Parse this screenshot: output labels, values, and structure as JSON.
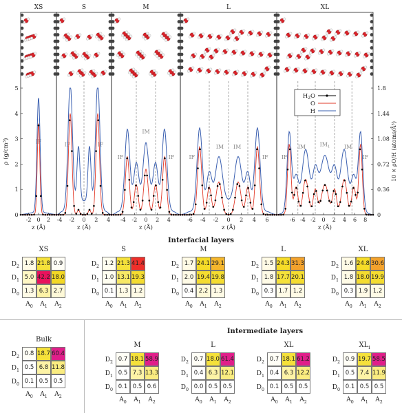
{
  "chart_data": {
    "type": "line",
    "panels": [
      {
        "title": "XS",
        "xticks": [
          "-2",
          "0",
          "2"
        ],
        "xlim": [
          -3.6,
          3.6
        ]
      },
      {
        "title": "S",
        "xticks": [
          "-4",
          "-2",
          "0",
          "2",
          "4"
        ],
        "xlim": [
          -4.5,
          4.5
        ]
      },
      {
        "title": "M",
        "xticks": [
          "-4",
          "-2",
          "0",
          "2",
          "4"
        ],
        "xlim": [
          -6,
          6
        ]
      },
      {
        "title": "L",
        "xticks": [
          "-6",
          "-4",
          "-2",
          "0",
          "2",
          "4",
          "6"
        ],
        "xlim": [
          -7.5,
          7.5
        ]
      },
      {
        "title": "XL",
        "xticks": [
          "-6",
          "-4",
          "-2",
          "0",
          "2",
          "4",
          "6",
          "8"
        ],
        "xlim": [
          -9,
          9.5
        ]
      }
    ],
    "xlabel": "z (Å)",
    "ylabel": "ρ (g/cm³)",
    "ylabel_right": "10 × ρO/H (atoms/Å³)",
    "ylim": [
      0,
      5
    ],
    "yticks": [
      "0",
      "1",
      "2",
      "3",
      "4",
      "5"
    ],
    "yticks_right": [
      "0",
      "0.36",
      "0.72",
      "1.08",
      "1.44",
      "1.8"
    ],
    "legend_position": "top-right",
    "series": [
      {
        "name": "H2O",
        "color": "#000000"
      },
      {
        "name": "O",
        "color": "#e23b2a"
      },
      {
        "name": "H",
        "color": "#3a5fb0"
      }
    ],
    "region_labels": {
      "XS": [
        "IF"
      ],
      "S": [
        "IF",
        "IF"
      ],
      "M": [
        "IF",
        "IM",
        "IF"
      ],
      "L": [
        "IF",
        "IM",
        "IM",
        "IF"
      ],
      "XL": [
        "IF",
        "IM",
        "IM1",
        "IM",
        "IF"
      ]
    }
  },
  "interfacial_title": "Interfacial layers",
  "intermediate_title": "Intermediate layers",
  "row_labels": [
    "D2",
    "D1",
    "D0"
  ],
  "col_labels": [
    "A0",
    "A1",
    "A2"
  ],
  "interfacial": [
    {
      "title": "XS",
      "values": [
        [
          "1.8",
          "21.8",
          "0.9"
        ],
        [
          "5.0",
          "42.2",
          "18.0"
        ],
        [
          "1.3",
          "6.3",
          "2.7"
        ]
      ],
      "colors": [
        [
          "#fffbe6",
          "#f5e13a",
          "#fffef6"
        ],
        [
          "#fff7c4",
          "#e8125c",
          "#f3d825"
        ],
        [
          "#fffbe6",
          "#fdf3a6",
          "#fef9d8"
        ]
      ]
    },
    {
      "title": "S",
      "values": [
        [
          "1.2",
          "21.3",
          "41.4"
        ],
        [
          "1.0",
          "13.1",
          "19.3"
        ],
        [
          "0.1",
          "1.3",
          "1.2"
        ]
      ],
      "colors": [
        [
          "#fffef0",
          "#f5e13a",
          "#ef2f2a"
        ],
        [
          "#fffef0",
          "#f7e865",
          "#f4dc30"
        ],
        [
          "#ffffff",
          "#fffbe6",
          "#fffbe6"
        ]
      ]
    },
    {
      "title": "M",
      "values": [
        [
          "1.7",
          "24.1",
          "29.1"
        ],
        [
          "2.0",
          "19.4",
          "19.8"
        ],
        [
          "0.4",
          "2.2",
          "1.3"
        ]
      ],
      "colors": [
        [
          "#fffbe6",
          "#f6dc28",
          "#f5b62c"
        ],
        [
          "#fffbe6",
          "#f4dc30",
          "#f4dc30"
        ],
        [
          "#ffffff",
          "#fef9d8",
          "#fffbe6"
        ]
      ]
    },
    {
      "title": "L",
      "values": [
        [
          "1.5",
          "24.3",
          "31.3"
        ],
        [
          "1.8",
          "17.7",
          "20.1"
        ],
        [
          "0.3",
          "1.7",
          "1.2"
        ]
      ],
      "colors": [
        [
          "#fffbe6",
          "#f6dc28",
          "#f3a22c"
        ],
        [
          "#fffbe6",
          "#f5e13a",
          "#f4dc30"
        ],
        [
          "#ffffff",
          "#fffbe6",
          "#fffbe6"
        ]
      ]
    },
    {
      "title": "XL",
      "values": [
        [
          "1.6",
          "24.8",
          "30.6"
        ],
        [
          "1.8",
          "18.0",
          "19.9"
        ],
        [
          "0.3",
          "1.9",
          "1.2"
        ]
      ],
      "colors": [
        [
          "#fffbe6",
          "#f6dc28",
          "#f3a22c"
        ],
        [
          "#fffbe6",
          "#f4dc30",
          "#f4dc30"
        ],
        [
          "#ffffff",
          "#fffbe6",
          "#fffbe6"
        ]
      ]
    }
  ],
  "bulk": {
    "title": "Bulk",
    "values": [
      [
        "0.8",
        "18.7",
        "60.4"
      ],
      [
        "0.5",
        "6.8",
        "11.8"
      ],
      [
        "0.1",
        "0.5",
        "0.5"
      ]
    ],
    "colors": [
      [
        "#fffef6",
        "#f5e13a",
        "#e01e8a"
      ],
      [
        "#ffffff",
        "#fdf3a6",
        "#faec80"
      ],
      [
        "#ffffff",
        "#ffffff",
        "#ffffff"
      ]
    ]
  },
  "intermediate": [
    {
      "title": "M",
      "values": [
        [
          "0.7",
          "18.1",
          "58.9"
        ],
        [
          "0.5",
          "7.3",
          "13.3"
        ],
        [
          "0.1",
          "0.5",
          "0.6"
        ]
      ],
      "colors": [
        [
          "#fffef6",
          "#f5e13a",
          "#e01e8a"
        ],
        [
          "#ffffff",
          "#fdf3a6",
          "#faec80"
        ],
        [
          "#ffffff",
          "#ffffff",
          "#ffffff"
        ]
      ]
    },
    {
      "title": "L",
      "values": [
        [
          "0.7",
          "18.0",
          "61.4"
        ],
        [
          "0.4",
          "6.3",
          "12.1"
        ],
        [
          "0.0",
          "0.5",
          "0.5"
        ]
      ],
      "colors": [
        [
          "#fffef6",
          "#f5e13a",
          "#e01e8a"
        ],
        [
          "#ffffff",
          "#fdf3a6",
          "#faec80"
        ],
        [
          "#ffffff",
          "#ffffff",
          "#ffffff"
        ]
      ]
    },
    {
      "title": "XL",
      "values": [
        [
          "0.7",
          "18.1",
          "61.2"
        ],
        [
          "0.4",
          "6.3",
          "12.2"
        ],
        [
          "0.1",
          "0.5",
          "0.5"
        ]
      ],
      "colors": [
        [
          "#fffef6",
          "#f5e13a",
          "#e01e8a"
        ],
        [
          "#ffffff",
          "#fdf3a6",
          "#faec80"
        ],
        [
          "#ffffff",
          "#ffffff",
          "#ffffff"
        ]
      ]
    },
    {
      "title": "XLi",
      "values": [
        [
          "0.9",
          "19.7",
          "58.5"
        ],
        [
          "0.5",
          "7.4",
          "11.9"
        ],
        [
          "0.1",
          "0.5",
          "0.5"
        ]
      ],
      "colors": [
        [
          "#fffef6",
          "#f5e13a",
          "#e01e8a"
        ],
        [
          "#ffffff",
          "#fdf3a6",
          "#faec80"
        ],
        [
          "#ffffff",
          "#ffffff",
          "#ffffff"
        ]
      ]
    }
  ]
}
